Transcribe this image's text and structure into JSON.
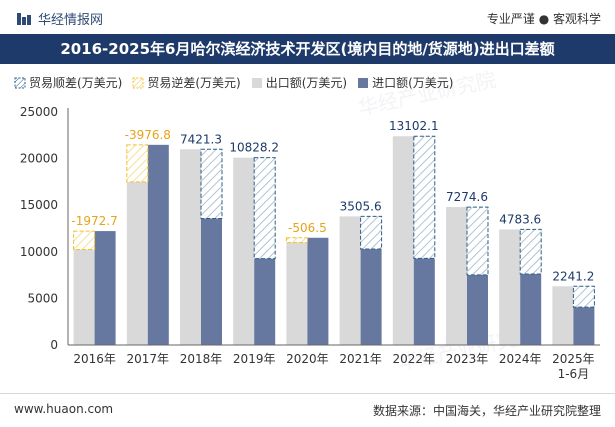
{
  "header": {
    "brand": "华经情报网",
    "slogan": "专业严谨 ● 客观科学"
  },
  "colors": {
    "title_bg": "#1e3a6a",
    "export_bar": "#d9d9d9",
    "import_bar": "#6678a0",
    "surplus_hatch": "#2b5f8a",
    "deficit_hatch": "#f2c130",
    "surplus_label": "#1e3a6a",
    "deficit_label": "#e8a317"
  },
  "legend": {
    "surplus": "贸易顺差(万美元)",
    "deficit": "贸易逆差(万美元)",
    "export": "出口额(万美元)",
    "import": "进口额(万美元)"
  },
  "chart_data": {
    "type": "bar",
    "title": "2016-2025年6月哈尔滨经济技术开发区(境内目的地/货源地)进出口差额",
    "categories": [
      "2016年",
      "2017年",
      "2018年",
      "2019年",
      "2020年",
      "2021年",
      "2022年",
      "2023年",
      "2024年",
      "2025年\n1-6月"
    ],
    "ylim": [
      0,
      25000
    ],
    "yticks": [
      0,
      5000,
      10000,
      15000,
      20000,
      25000
    ],
    "series": [
      {
        "name": "出口额(万美元)",
        "values": [
          10250,
          17500,
          21000,
          20100,
          11000,
          13800,
          22400,
          14800,
          12400,
          6300
        ]
      },
      {
        "name": "进口额(万美元)",
        "values": [
          12222.7,
          21476.8,
          13578.7,
          9271.8,
          11506.5,
          10294.4,
          9297.9,
          7525.4,
          7616.4,
          4058.8
        ]
      }
    ],
    "balance": [
      -1972.7,
      -3976.8,
      7421.3,
      10828.2,
      -506.5,
      3505.6,
      13102.1,
      7274.6,
      4783.6,
      2241.2
    ],
    "balance_labels": [
      "-1972.7",
      "-3976.8",
      "7421.3",
      "10828.2",
      "-506.5",
      "3505.6",
      "13102.1",
      "7274.6",
      "4783.6",
      "2241.2"
    ],
    "watermark": "华经产业研究院"
  },
  "footer": {
    "website": "www.huaon.com",
    "source": "数据来源：中国海关，华经产业研究院整理"
  }
}
